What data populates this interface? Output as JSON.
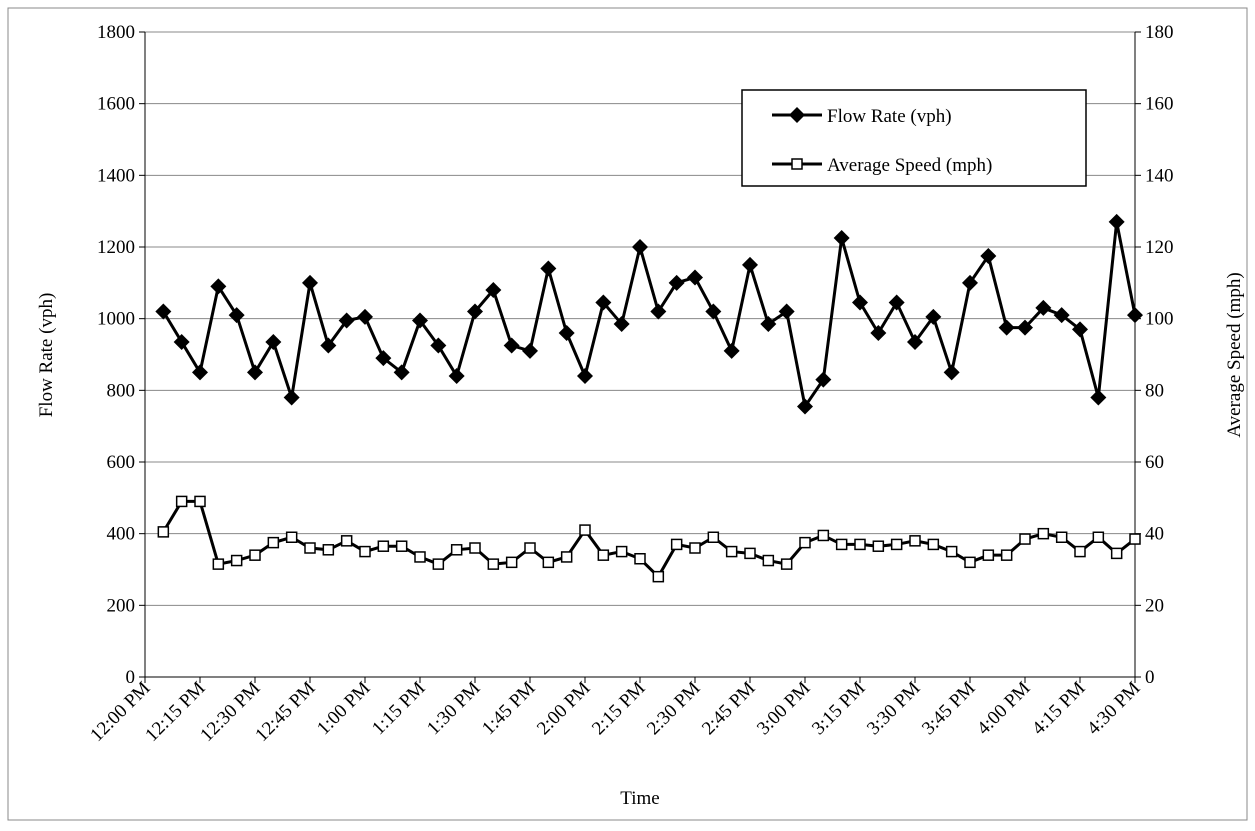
{
  "chart_data": {
    "type": "line",
    "x_label": "Time",
    "y_label": "Flow Rate (vph)",
    "y2_label": "Average Speed (mph)",
    "x": [
      5,
      10,
      15,
      20,
      25,
      30,
      35,
      40,
      45,
      50,
      55,
      60,
      65,
      70,
      75,
      80,
      85,
      90,
      95,
      100,
      105,
      110,
      115,
      120,
      125,
      130,
      135,
      140,
      145,
      150,
      155,
      160,
      165,
      170,
      175,
      180,
      185,
      190,
      195,
      200,
      205,
      210,
      215,
      220,
      225,
      230,
      235,
      240,
      245,
      250,
      255,
      260,
      265,
      270
    ],
    "xlim": [
      0,
      270
    ],
    "xticks": [
      {
        "value": 0,
        "label": "12:00 PM"
      },
      {
        "value": 15,
        "label": "12:15 PM"
      },
      {
        "value": 30,
        "label": "12:30 PM"
      },
      {
        "value": 45,
        "label": "12:45 PM"
      },
      {
        "value": 60,
        "label": "1:00 PM"
      },
      {
        "value": 75,
        "label": "1:15 PM"
      },
      {
        "value": 90,
        "label": "1:30 PM"
      },
      {
        "value": 105,
        "label": "1:45 PM"
      },
      {
        "value": 120,
        "label": "2:00 PM"
      },
      {
        "value": 135,
        "label": "2:15 PM"
      },
      {
        "value": 150,
        "label": "2:30 PM"
      },
      {
        "value": 165,
        "label": "2:45 PM"
      },
      {
        "value": 180,
        "label": "3:00 PM"
      },
      {
        "value": 195,
        "label": "3:15 PM"
      },
      {
        "value": 210,
        "label": "3:30 PM"
      },
      {
        "value": 225,
        "label": "3:45 PM"
      },
      {
        "value": 240,
        "label": "4:00 PM"
      },
      {
        "value": 255,
        "label": "4:15 PM"
      },
      {
        "value": 270,
        "label": "4:30 PM"
      }
    ],
    "ylim": [
      0,
      1800
    ],
    "yticks": [
      0,
      200,
      400,
      600,
      800,
      1000,
      1200,
      1400,
      1600,
      1800
    ],
    "y2lim": [
      0,
      180
    ],
    "y2ticks": [
      0,
      20,
      40,
      60,
      80,
      100,
      120,
      140,
      160,
      180
    ],
    "grid": true,
    "legend": "upper right",
    "series": [
      {
        "name": "Flow Rate (vph)",
        "color": "#000000",
        "marker": "diamond",
        "axis": "y",
        "values": [
          1020,
          935,
          850,
          1090,
          1010,
          850,
          935,
          780,
          1100,
          925,
          995,
          1005,
          890,
          850,
          995,
          925,
          840,
          1020,
          1080,
          925,
          910,
          1140,
          960,
          840,
          1045,
          985,
          1200,
          1020,
          1100,
          1115,
          1020,
          910,
          1150,
          985,
          1020,
          755,
          830,
          1225,
          1045,
          960,
          1045,
          935,
          1005,
          850,
          1100,
          1175,
          975,
          975,
          1030,
          1010,
          970,
          780,
          1270,
          1010
        ]
      },
      {
        "name": "Average Speed (mph)",
        "color": "#000000",
        "marker": "square",
        "axis": "y2",
        "values": [
          40.5,
          49,
          49,
          31.5,
          32.5,
          34,
          37.5,
          39,
          36,
          35.5,
          38,
          35,
          36.5,
          36.5,
          33.5,
          31.5,
          35.5,
          36,
          31.5,
          32,
          36,
          32,
          33.5,
          41,
          34,
          35,
          33,
          28,
          37,
          36,
          39,
          35,
          34.5,
          32.5,
          31.5,
          37.5,
          39.5,
          37,
          37,
          36.5,
          37,
          38,
          37,
          35,
          32,
          34,
          34,
          38.5,
          40,
          39,
          35,
          39,
          34.5,
          38.5
        ]
      }
    ]
  }
}
